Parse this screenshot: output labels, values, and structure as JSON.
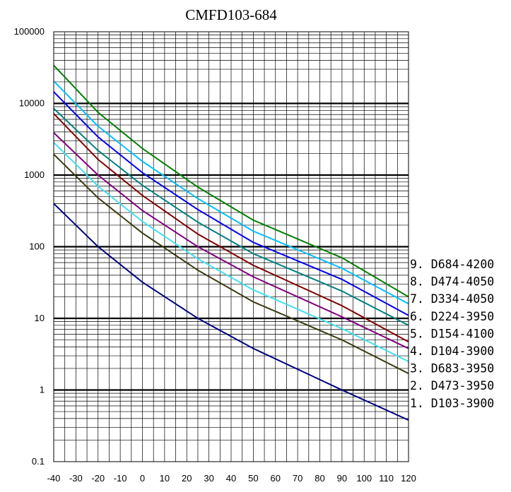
{
  "chart_data": {
    "type": "line",
    "title": "CMFD103-684",
    "xlabel": "",
    "ylabel": "",
    "xlim": [
      -40,
      120
    ],
    "ylim": [
      0.1,
      100000
    ],
    "yscale": "log",
    "grid": true,
    "legend_placement": "right",
    "x_ticks": [
      "-40",
      "-30",
      "-20",
      "-10",
      "0",
      "10",
      "20",
      "30",
      "40",
      "50",
      "60",
      "70",
      "80",
      "90",
      "100",
      "110",
      "120"
    ],
    "y_ticks": [
      "0.1",
      "1",
      "10",
      "100",
      "1000",
      "10000",
      "100000"
    ],
    "series": [
      {
        "name": "1. D103-3900",
        "color": "#000080",
        "x": [
          -40,
          -20,
          0,
          25,
          50,
          90,
          120
        ],
        "y": [
          400,
          100,
          32,
          10,
          3.8,
          1.0,
          0.38
        ]
      },
      {
        "name": "2. D473-3950",
        "color": "#3a3a10",
        "x": [
          -40,
          -20,
          0,
          25,
          50,
          90,
          120
        ],
        "y": [
          1950,
          480,
          155,
          47,
          17,
          5.0,
          1.7
        ]
      },
      {
        "name": "3. D683-3950",
        "color": "#40e0f0",
        "x": [
          -40,
          -20,
          0,
          25,
          50,
          90,
          120
        ],
        "y": [
          2850,
          700,
          225,
          68,
          25,
          7.2,
          2.5
        ]
      },
      {
        "name": "4. D104-3900",
        "color": "#800080",
        "x": [
          -40,
          -20,
          0,
          25,
          50,
          90,
          120
        ],
        "y": [
          3900,
          1000,
          320,
          100,
          38,
          10.5,
          3.8
        ]
      },
      {
        "name": "5. D154-4100",
        "color": "#800000",
        "x": [
          -40,
          -20,
          0,
          25,
          50,
          90,
          120
        ],
        "y": [
          7200,
          1650,
          520,
          150,
          55,
          15,
          4.7
        ]
      },
      {
        "name": "6. D224-3950",
        "color": "#008080",
        "x": [
          -40,
          -20,
          0,
          25,
          50,
          90,
          120
        ],
        "y": [
          8500,
          2200,
          720,
          220,
          80,
          24,
          8
        ]
      },
      {
        "name": "7. D334-4050",
        "color": "#0000ee",
        "x": [
          -40,
          -20,
          0,
          25,
          50,
          90,
          120
        ],
        "y": [
          14500,
          3400,
          1080,
          330,
          115,
          35,
          11
        ]
      },
      {
        "name": "8. D474-4050",
        "color": "#00c0ff",
        "x": [
          -40,
          -20,
          0,
          25,
          50,
          90,
          120
        ],
        "y": [
          20500,
          4800,
          1550,
          470,
          165,
          50,
          16
        ]
      },
      {
        "name": "9. D684-4200",
        "color": "#008000",
        "x": [
          -40,
          -20,
          0,
          25,
          50,
          90,
          120
        ],
        "y": [
          34000,
          7500,
          2350,
          680,
          235,
          70,
          20
        ]
      }
    ],
    "legend_order": [
      8,
      7,
      6,
      5,
      4,
      3,
      2,
      1,
      0
    ]
  }
}
